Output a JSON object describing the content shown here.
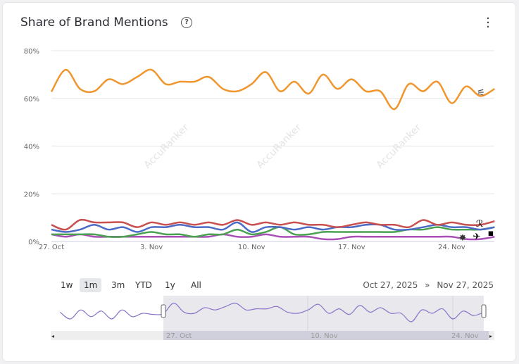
{
  "header": {
    "title": "Share of Brand Mentions",
    "help_icon": "question-circle-icon",
    "menu_icon": "kebab-menu-icon"
  },
  "watermark": "AccuRanker",
  "chart_data": {
    "type": "line",
    "title": "Share of Brand Mentions",
    "x_start": "2025-10-27",
    "x_end": "2025-11-27",
    "x_step": "1 day",
    "x_tick_labels": [
      "27. Oct",
      "3. Nov",
      "10. Nov",
      "17. Nov",
      "24. Nov"
    ],
    "y_tick_labels": [
      "0%",
      "20%",
      "40%",
      "60%",
      "80%"
    ],
    "ylim": [
      0,
      80
    ],
    "grid": "horizontal",
    "series": [
      {
        "color": "#f0962e",
        "icon": "brand-logo-icon",
        "values": [
          62.8,
          72,
          64,
          63,
          68,
          66,
          69,
          72,
          66,
          67,
          67,
          69,
          64,
          63,
          66,
          71,
          63,
          67,
          62,
          70,
          64,
          68,
          63,
          63,
          55.5,
          66,
          63,
          67,
          58,
          65,
          61,
          64
        ]
      },
      {
        "color": "#c8504f",
        "icon": "r-logo-icon",
        "values": [
          7,
          5,
          9,
          8,
          8,
          8,
          6,
          8,
          7,
          8,
          7,
          8,
          7,
          9,
          7,
          8,
          7,
          8,
          7,
          7,
          6,
          7,
          8,
          7,
          7,
          6,
          9,
          7,
          8,
          7,
          7,
          8.5
        ]
      },
      {
        "color": "#4a6bc6",
        "icon": "star-logo-icon",
        "values": [
          5,
          4,
          5,
          7,
          5,
          6,
          4,
          6,
          6,
          7,
          6,
          6,
          5,
          8,
          4,
          6,
          6,
          5,
          6,
          5,
          6,
          6,
          7,
          7,
          5,
          5,
          6,
          7,
          6,
          6,
          5,
          6
        ]
      },
      {
        "color": "#4aa150",
        "icon": "bird-logo-icon",
        "values": [
          3,
          3,
          3,
          3,
          2,
          2,
          3,
          4,
          3,
          3,
          2,
          3,
          3,
          5,
          3,
          4,
          6,
          3,
          3,
          4,
          4,
          4,
          4,
          4,
          4,
          5,
          5,
          6,
          5,
          5,
          5,
          6
        ]
      },
      {
        "color": "#a94fb7",
        "icon": "pns-logo-icon",
        "values": [
          3,
          2,
          3,
          2,
          2,
          2,
          2,
          2,
          2,
          2,
          2,
          2,
          3,
          2,
          2,
          3,
          2,
          2,
          2,
          1,
          1,
          2,
          2,
          2,
          2,
          2,
          2,
          2,
          2,
          1,
          1,
          2
        ]
      }
    ]
  },
  "navigator": {
    "range_buttons": [
      "1w",
      "1m",
      "3m",
      "YTD",
      "1y",
      "All"
    ],
    "selected": "1m",
    "from": "Oct 27, 2025",
    "separator": "»",
    "to": "Nov 27, 2025",
    "tick_labels": [
      "27. Oct",
      "10. Nov",
      "24. Nov"
    ],
    "line_color": "#8b73c9",
    "history_values": [
      64,
      58,
      66,
      60,
      65,
      58,
      66,
      60,
      63,
      62
    ]
  }
}
